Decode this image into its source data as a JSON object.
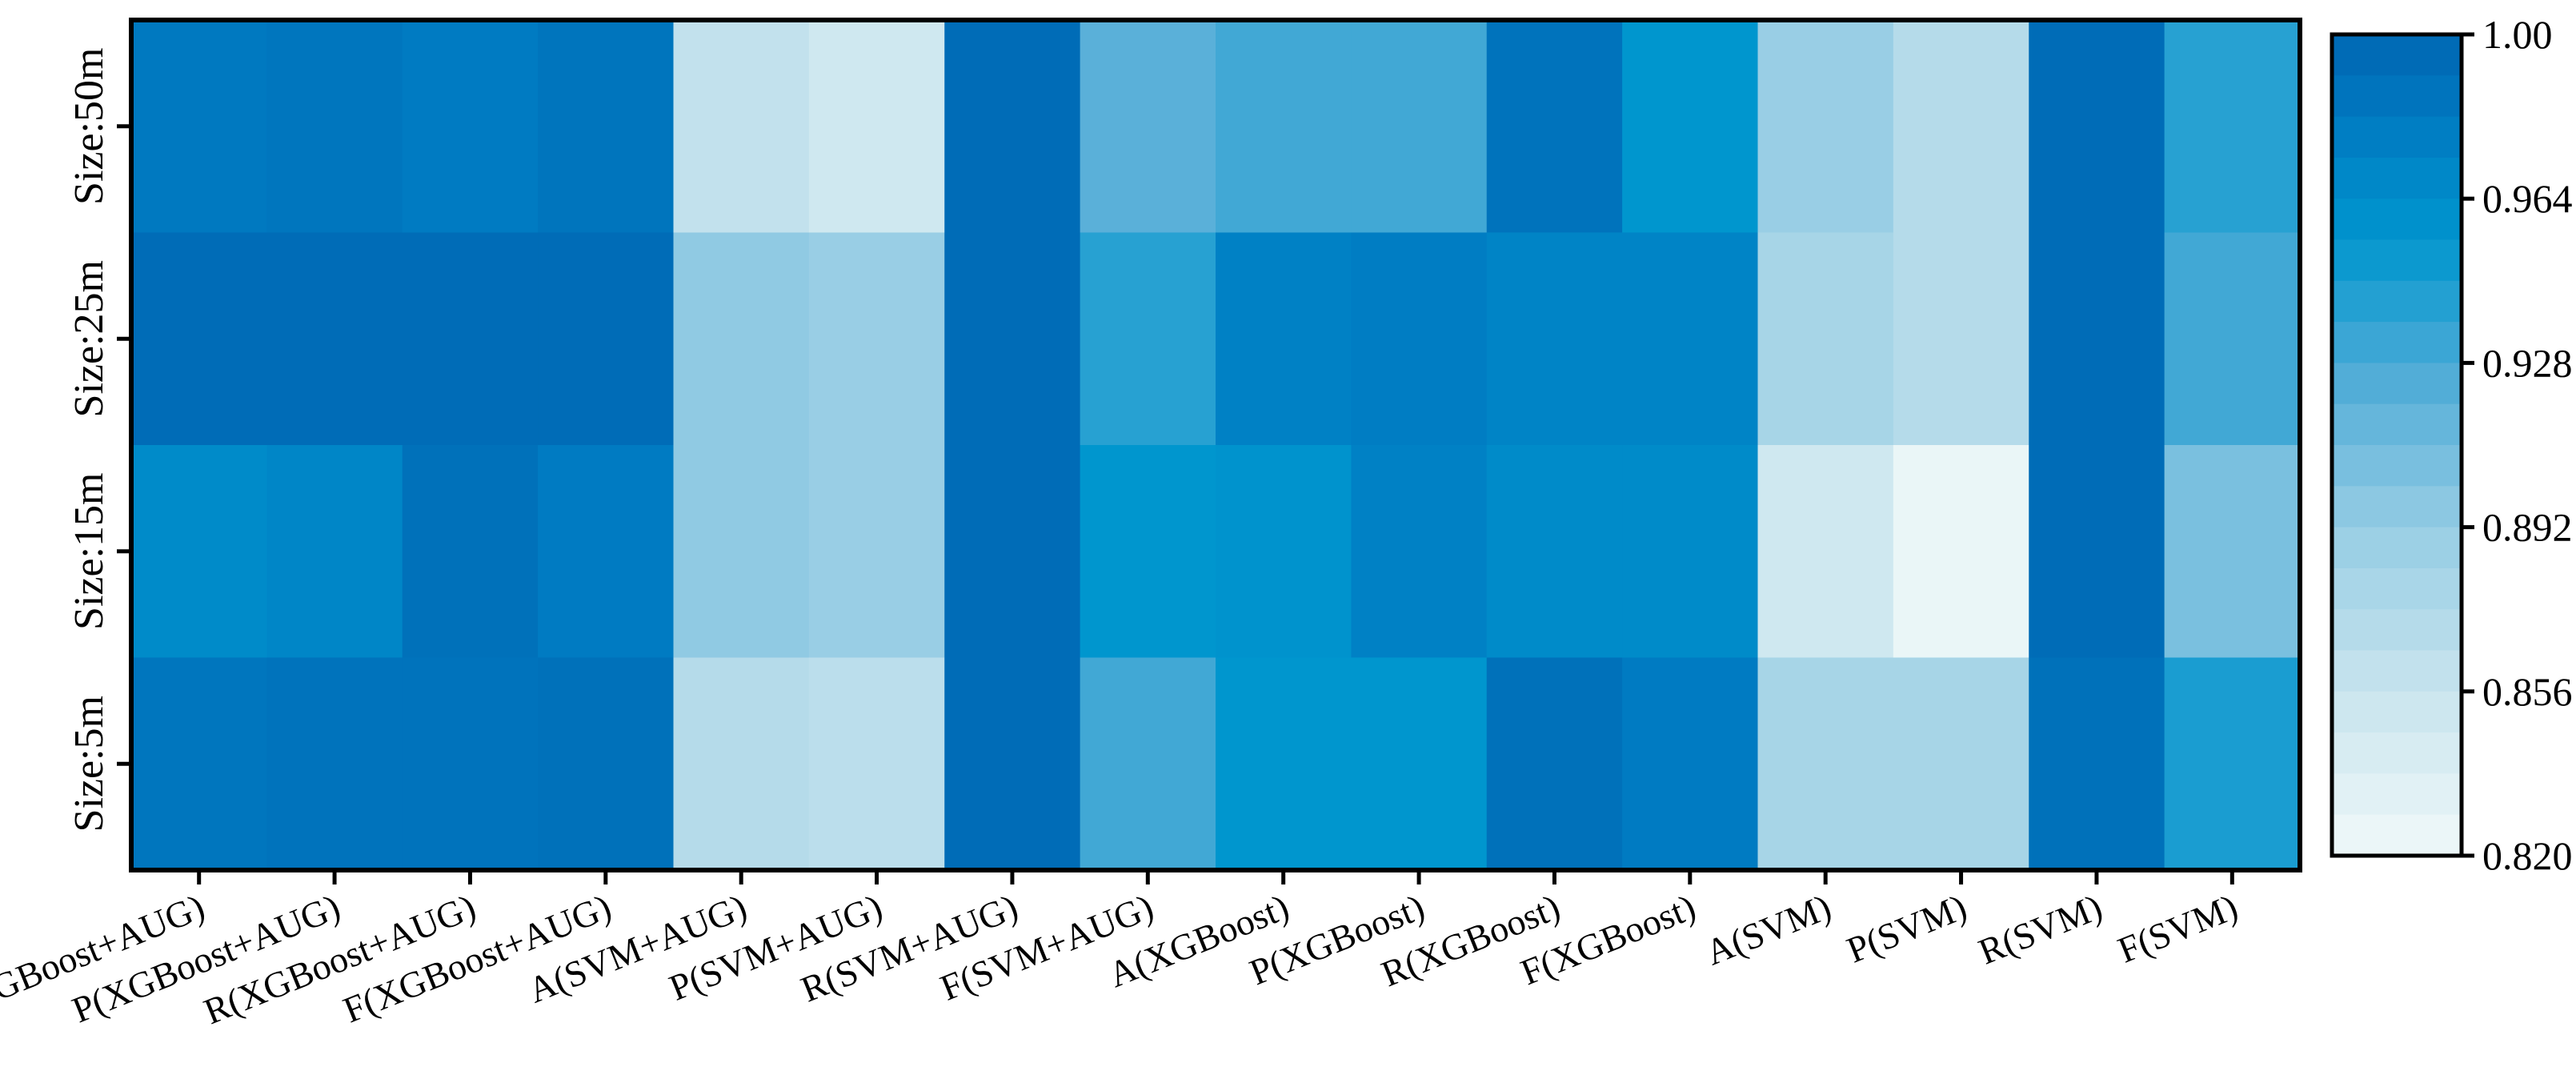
{
  "chart_data": {
    "type": "heatmap",
    "title": "",
    "xlabel": "",
    "ylabel": "",
    "x_categories": [
      "A(XGBoost+AUG)",
      "P(XGBoost+AUG)",
      "R(XGBoost+AUG)",
      "F(XGBoost+AUG)",
      "A(SVM+AUG)",
      "P(SVM+AUG)",
      "R(SVM+AUG)",
      "F(SVM+AUG)",
      "A(XGBoost)",
      "P(XGBoost)",
      "R(XGBoost)",
      "F(XGBoost)",
      "A(SVM)",
      "P(SVM)",
      "R(SVM)",
      "F(SVM)"
    ],
    "y_categories": [
      "Size:50m",
      "Size:25m",
      "Size:15m",
      "Size:5m"
    ],
    "values": [
      [
        0.982,
        0.985,
        0.98,
        0.986,
        0.86,
        0.85,
        0.994,
        0.92,
        0.93,
        0.93,
        0.988,
        0.955,
        0.89,
        0.87,
        0.994,
        0.94
      ],
      [
        0.994,
        0.994,
        0.994,
        0.994,
        0.895,
        0.89,
        0.994,
        0.94,
        0.975,
        0.978,
        0.972,
        0.972,
        0.88,
        0.87,
        0.994,
        0.93
      ],
      [
        0.965,
        0.97,
        0.99,
        0.98,
        0.895,
        0.89,
        0.994,
        0.955,
        0.958,
        0.975,
        0.965,
        0.965,
        0.85,
        0.825,
        0.994,
        0.905
      ],
      [
        0.985,
        0.988,
        0.988,
        0.99,
        0.87,
        0.865,
        0.994,
        0.93,
        0.955,
        0.955,
        0.99,
        0.98,
        0.88,
        0.88,
        0.99,
        0.945
      ]
    ],
    "colorbar": {
      "min": 0.82,
      "max": 1.0,
      "tick_labels": [
        "1.00",
        "0.964",
        "0.928",
        "0.892",
        "0.856",
        "0.820"
      ],
      "tick_values": [
        1.0,
        0.964,
        0.928,
        0.892,
        0.856,
        0.82
      ],
      "colormap": "Blues (light to dark)",
      "color_low": "#f0f9f9",
      "color_mid": "#0097cf",
      "color_high": "#0066b3"
    }
  }
}
